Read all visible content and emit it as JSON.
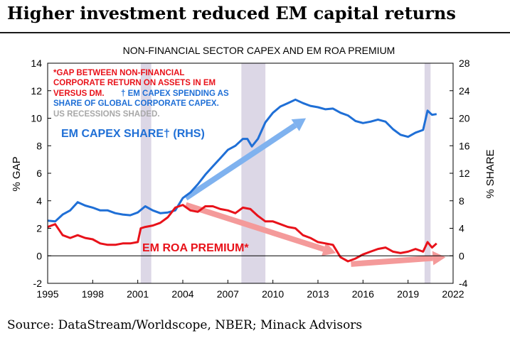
{
  "page_title": "Higher investment reduced EM capital returns",
  "source": "Source: DataStream/Worldscope, NBER; Minack Advisors",
  "chart_data": {
    "type": "line",
    "title": "NON-FINANCIAL SECTOR CAPEX AND EM ROA PREMIUM",
    "ylabel_left": "% GAP",
    "ylabel_right": "% SHARE",
    "xlim": [
      1995,
      2022
    ],
    "ylim_left": [
      -2,
      14
    ],
    "ylim_right": [
      -4,
      28
    ],
    "x_ticks": [
      "1995",
      "1998",
      "2001",
      "2004",
      "2007",
      "2010",
      "2013",
      "2016",
      "2019",
      "2022"
    ],
    "y_ticks_left": [
      "-2",
      "0",
      "2",
      "4",
      "6",
      "8",
      "10",
      "12",
      "14"
    ],
    "y_ticks_right": [
      "-4",
      "0",
      "4",
      "8",
      "12",
      "16",
      "20",
      "24",
      "28"
    ],
    "recessions": [
      [
        2001.2,
        2001.9
      ],
      [
        2007.9,
        2009.5
      ],
      [
        2020.1,
        2020.5
      ]
    ],
    "notes": {
      "red_note": "*GAP BETWEEN NON-FINANCIAL CORPORATE RETURN ON ASSETS IN EM VERSUS DM.",
      "blue_note": "† EM CAPEX SPENDING AS SHARE OF GLOBAL CORPORATE CAPEX.",
      "gray_note": "US RECESSIONS SHADED."
    },
    "series": [
      {
        "name": "EM CAPEX SHARE† (RHS)",
        "axis": "right",
        "color": "#1f6fd6",
        "points": [
          [
            1995,
            5.1
          ],
          [
            1995.5,
            5.0
          ],
          [
            1996,
            6.0
          ],
          [
            1996.5,
            6.6
          ],
          [
            1997,
            7.8
          ],
          [
            1997.5,
            7.3
          ],
          [
            1998,
            7.0
          ],
          [
            1998.5,
            6.6
          ],
          [
            1999,
            6.6
          ],
          [
            1999.5,
            6.2
          ],
          [
            2000,
            6.0
          ],
          [
            2000.5,
            5.9
          ],
          [
            2001,
            6.3
          ],
          [
            2001.5,
            7.2
          ],
          [
            2002,
            6.6
          ],
          [
            2002.5,
            6.2
          ],
          [
            2003,
            6.3
          ],
          [
            2003.5,
            6.6
          ],
          [
            2004,
            8.4
          ],
          [
            2004.5,
            9.2
          ],
          [
            2005,
            10.4
          ],
          [
            2005.5,
            11.8
          ],
          [
            2006,
            13.0
          ],
          [
            2006.5,
            14.2
          ],
          [
            2007,
            15.4
          ],
          [
            2007.5,
            16.0
          ],
          [
            2008,
            17.0
          ],
          [
            2008.3,
            17.0
          ],
          [
            2008.6,
            15.9
          ],
          [
            2009,
            17.0
          ],
          [
            2009.5,
            19.4
          ],
          [
            2010,
            20.8
          ],
          [
            2010.5,
            21.7
          ],
          [
            2011,
            22.2
          ],
          [
            2011.5,
            22.7
          ],
          [
            2012,
            22.2
          ],
          [
            2012.5,
            21.8
          ],
          [
            2013,
            21.6
          ],
          [
            2013.5,
            21.3
          ],
          [
            2014,
            21.4
          ],
          [
            2014.5,
            20.8
          ],
          [
            2015,
            20.4
          ],
          [
            2015.5,
            19.6
          ],
          [
            2016,
            19.3
          ],
          [
            2016.5,
            19.5
          ],
          [
            2017,
            19.8
          ],
          [
            2017.5,
            19.5
          ],
          [
            2018,
            18.4
          ],
          [
            2018.5,
            17.6
          ],
          [
            2019,
            17.3
          ],
          [
            2019.5,
            17.9
          ],
          [
            2020,
            18.3
          ],
          [
            2020.3,
            21.1
          ],
          [
            2020.6,
            20.5
          ],
          [
            2020.9,
            20.6
          ]
        ]
      },
      {
        "name": "EM ROA PREMIUM*",
        "axis": "left",
        "color": "#e8121a",
        "points": [
          [
            1995,
            2.1
          ],
          [
            1995.5,
            2.3
          ],
          [
            1996,
            1.5
          ],
          [
            1996.5,
            1.3
          ],
          [
            1997,
            1.5
          ],
          [
            1997.5,
            1.3
          ],
          [
            1998,
            1.2
          ],
          [
            1998.5,
            0.9
          ],
          [
            1999,
            0.8
          ],
          [
            1999.5,
            0.8
          ],
          [
            2000,
            0.9
          ],
          [
            2000.5,
            0.9
          ],
          [
            2001,
            1.0
          ],
          [
            2001.2,
            2.0
          ],
          [
            2001.5,
            2.1
          ],
          [
            2002,
            2.2
          ],
          [
            2002.5,
            2.4
          ],
          [
            2003,
            2.8
          ],
          [
            2003.5,
            3.5
          ],
          [
            2004,
            3.7
          ],
          [
            2004.5,
            3.3
          ],
          [
            2005,
            3.2
          ],
          [
            2005.5,
            3.6
          ],
          [
            2006,
            3.6
          ],
          [
            2006.5,
            3.4
          ],
          [
            2007,
            3.3
          ],
          [
            2007.5,
            3.1
          ],
          [
            2008,
            3.5
          ],
          [
            2008.5,
            3.4
          ],
          [
            2009,
            2.9
          ],
          [
            2009.5,
            2.5
          ],
          [
            2010,
            2.5
          ],
          [
            2010.5,
            2.3
          ],
          [
            2011,
            2.1
          ],
          [
            2011.5,
            2.0
          ],
          [
            2012,
            1.5
          ],
          [
            2012.5,
            1.3
          ],
          [
            2013,
            1.0
          ],
          [
            2013.5,
            0.9
          ],
          [
            2014,
            0.8
          ],
          [
            2014.5,
            -0.1
          ],
          [
            2015,
            -0.4
          ],
          [
            2015.5,
            -0.2
          ],
          [
            2016,
            0.1
          ],
          [
            2016.5,
            0.3
          ],
          [
            2017,
            0.5
          ],
          [
            2017.5,
            0.6
          ],
          [
            2018,
            0.3
          ],
          [
            2018.5,
            0.2
          ],
          [
            2019,
            0.3
          ],
          [
            2019.5,
            0.5
          ],
          [
            2020,
            0.3
          ],
          [
            2020.3,
            1.0
          ],
          [
            2020.6,
            0.6
          ],
          [
            2020.9,
            0.9
          ]
        ]
      }
    ],
    "series_labels": {
      "capex": "EM CAPEX SHARE† (RHS)",
      "roa": "EM ROA PREMIUM*"
    },
    "trend_arrows": [
      {
        "axis": "right",
        "color": "#7fb2ef",
        "from": [
          2004.2,
          8.4
        ],
        "to": [
          2012.2,
          20.0
        ]
      },
      {
        "axis": "left",
        "color": "#f49a9a",
        "from": [
          2004.2,
          3.7
        ],
        "to": [
          2014.2,
          0.2
        ]
      },
      {
        "axis": "left",
        "color": "#f49a9a",
        "from": [
          2015.2,
          -0.6
        ],
        "to": [
          2021.5,
          -0.1
        ]
      }
    ]
  }
}
